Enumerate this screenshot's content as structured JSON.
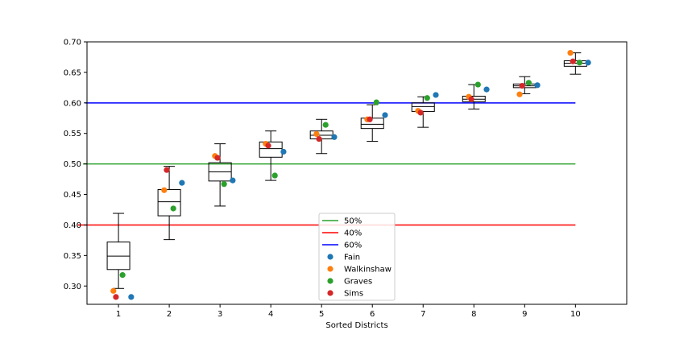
{
  "chart_data": {
    "type": "box",
    "xlabel": "Sorted Districts",
    "categories": [
      "1",
      "2",
      "3",
      "4",
      "5",
      "6",
      "7",
      "8",
      "9",
      "10"
    ],
    "ylim": [
      0.27,
      0.7
    ],
    "yticks": [
      "0.30",
      "0.35",
      "0.40",
      "0.45",
      "0.50",
      "0.55",
      "0.60",
      "0.65",
      "0.70"
    ],
    "boxes": [
      {
        "whisker_low": 0.296,
        "q1": 0.327,
        "median": 0.349,
        "q3": 0.372,
        "whisker_high": 0.419
      },
      {
        "whisker_low": 0.376,
        "q1": 0.415,
        "median": 0.438,
        "q3": 0.458,
        "whisker_high": 0.496
      },
      {
        "whisker_low": 0.431,
        "q1": 0.472,
        "median": 0.487,
        "q3": 0.502,
        "whisker_high": 0.533
      },
      {
        "whisker_low": 0.473,
        "q1": 0.511,
        "median": 0.525,
        "q3": 0.536,
        "whisker_high": 0.554
      },
      {
        "whisker_low": 0.517,
        "q1": 0.541,
        "median": 0.547,
        "q3": 0.554,
        "whisker_high": 0.573
      },
      {
        "whisker_low": 0.537,
        "q1": 0.558,
        "median": 0.565,
        "q3": 0.575,
        "whisker_high": 0.597
      },
      {
        "whisker_low": 0.56,
        "q1": 0.586,
        "median": 0.594,
        "q3": 0.6,
        "whisker_high": 0.61
      },
      {
        "whisker_low": 0.59,
        "q1": 0.602,
        "median": 0.606,
        "q3": 0.611,
        "whisker_high": 0.63
      },
      {
        "whisker_low": 0.615,
        "q1": 0.625,
        "median": 0.628,
        "q3": 0.631,
        "whisker_high": 0.643
      },
      {
        "whisker_low": 0.647,
        "q1": 0.66,
        "median": 0.665,
        "q3": 0.669,
        "whisker_high": 0.682
      }
    ],
    "reference_lines": [
      {
        "name": "50%",
        "y": 0.5,
        "x_range": [
          0.3,
          10.0
        ],
        "color": "#2ca02c"
      },
      {
        "name": "40%",
        "y": 0.4,
        "x_range": [
          0.2,
          10.0
        ],
        "color": "#ff0000"
      },
      {
        "name": "60%",
        "y": 0.6,
        "x_range": [
          0.35,
          10.0
        ],
        "color": "#0000ff"
      }
    ],
    "series": [
      {
        "name": "Fain",
        "color": "#1f77b4",
        "offset": 0.25,
        "values": [
          0.282,
          0.469,
          0.473,
          0.52,
          0.544,
          0.58,
          0.613,
          0.622,
          0.629,
          0.666
        ]
      },
      {
        "name": "Walkinshaw",
        "color": "#ff7f0e",
        "offset": -0.1,
        "values": [
          0.292,
          0.457,
          0.513,
          0.533,
          0.549,
          0.573,
          0.587,
          0.61,
          0.614,
          0.682
        ]
      },
      {
        "name": "Graves",
        "color": "#2ca02c",
        "offset": 0.08,
        "values": [
          0.318,
          0.427,
          0.467,
          0.481,
          0.564,
          0.601,
          0.608,
          0.63,
          0.633,
          0.666
        ]
      },
      {
        "name": "Sims",
        "color": "#d62728",
        "offset": -0.05,
        "values": [
          0.282,
          0.49,
          0.51,
          0.53,
          0.541,
          0.573,
          0.584,
          0.606,
          0.628,
          0.668
        ]
      }
    ],
    "legend_location": "lower-center"
  }
}
